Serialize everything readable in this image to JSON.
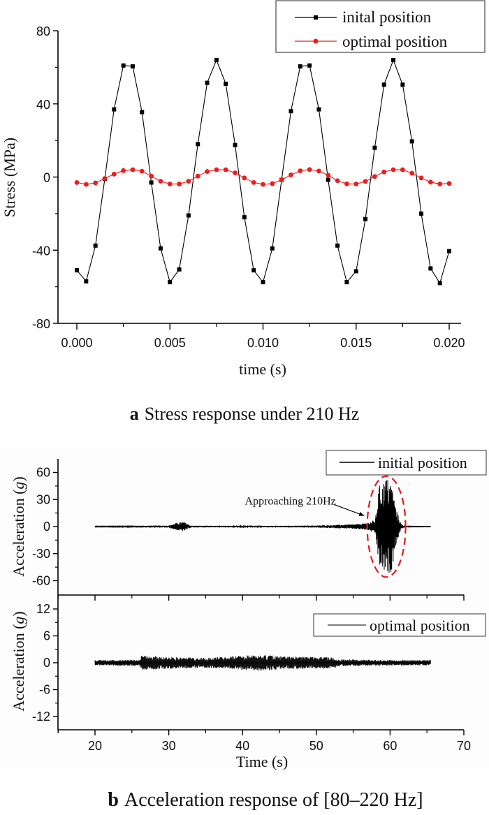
{
  "chart_data": [
    {
      "id": "a",
      "type": "line",
      "caption_letter": "a",
      "caption_text": "Stress response under 210 Hz",
      "xlabel": "time (s)",
      "ylabel": "Stress (MPa)",
      "xlim": [
        -0.0011,
        0.0211
      ],
      "ylim": [
        -80,
        80
      ],
      "xticks": [
        0.0,
        0.005,
        0.01,
        0.015,
        0.02
      ],
      "xtick_labels": [
        "0.000",
        "0.005",
        "0.010",
        "0.015",
        "0.020"
      ],
      "yticks": [
        -80,
        -40,
        0,
        40,
        80
      ],
      "ytick_labels": [
        "-80",
        "-40",
        "0",
        "40",
        "80"
      ],
      "grid": false,
      "legend_position": "top-right",
      "x_start": 0.0,
      "x_step": 0.0005,
      "series": [
        {
          "name": "inital position",
          "color": "#000000",
          "marker": "square",
          "values": [
            -51,
            -57,
            -37.5,
            -1,
            37,
            61,
            60.5,
            35.5,
            -3,
            -39,
            -57.5,
            -50.5,
            -21,
            18,
            51.5,
            64,
            51,
            17.5,
            -22,
            -51,
            -57.5,
            -39,
            -1.5,
            36,
            60.5,
            61,
            37,
            -1.5,
            -37.5,
            -57.5,
            -51.5,
            -23,
            16,
            50.5,
            64,
            50.5,
            19.5,
            -20,
            -50,
            -58,
            -40.5
          ]
        },
        {
          "name": "optimal position",
          "color": "#ee1c1c",
          "marker": "circle",
          "values": [
            -3,
            -4,
            -3.2,
            -0.8,
            1.6,
            3.5,
            4,
            3.2,
            0.5,
            -2.3,
            -3.8,
            -3.8,
            -2.3,
            0.5,
            3,
            4,
            4,
            2.3,
            -0.5,
            -3,
            -4,
            -3.6,
            -1.5,
            1.2,
            3.4,
            4.1,
            3.3,
            1,
            -2,
            -3.7,
            -3.8,
            -2.4,
            0.3,
            2.8,
            4,
            4,
            2.1,
            -0.5,
            -2.8,
            -3.8,
            -3.5
          ]
        }
      ]
    },
    {
      "id": "b",
      "type": "line",
      "caption_letter": "b",
      "caption_text": "Acceleration response of [80–220 Hz]",
      "xlabel": "Time (s)",
      "xlim": [
        15,
        70
      ],
      "xticks": [
        20,
        30,
        40,
        50,
        60,
        70
      ],
      "xtick_labels": [
        "20",
        "30",
        "40",
        "50",
        "60",
        "70"
      ],
      "grid": false,
      "panels": [
        {
          "name": "initial position",
          "ylabel_prefix": "Acceleration (",
          "ylabel_unit": "g",
          "ylabel_suffix": ")",
          "ylim": [
            -70,
            70
          ],
          "yticks": [
            -60,
            -30,
            0,
            30,
            60
          ],
          "ytick_labels": [
            "-60",
            "-30",
            "0",
            "30",
            "60"
          ],
          "legend_position": "top-right",
          "signal_range": [
            20,
            65.5
          ],
          "envelope": [
            {
              "t": 20,
              "amp": 0.3
            },
            {
              "t": 25,
              "amp": 0.4
            },
            {
              "t": 25.2,
              "amp": 1
            },
            {
              "t": 30,
              "amp": 1.2
            },
            {
              "t": 31,
              "amp": 4
            },
            {
              "t": 32,
              "amp": 5.5
            },
            {
              "t": 33,
              "amp": 1
            },
            {
              "t": 38,
              "amp": 0.8
            },
            {
              "t": 40,
              "amp": 0.6
            },
            {
              "t": 45,
              "amp": 0.8
            },
            {
              "t": 50,
              "amp": 1.2
            },
            {
              "t": 55,
              "amp": 2.5
            },
            {
              "t": 57,
              "amp": 4
            },
            {
              "t": 58,
              "amp": 8
            },
            {
              "t": 58.5,
              "amp": 45
            },
            {
              "t": 59.5,
              "amp": 55
            },
            {
              "t": 60.2,
              "amp": 50
            },
            {
              "t": 60.8,
              "amp": 20
            },
            {
              "t": 61.5,
              "amp": 3
            },
            {
              "t": 62,
              "amp": 0.3
            },
            {
              "t": 65.5,
              "amp": 0.2
            }
          ],
          "annotation": {
            "text": "Approaching 210Hz",
            "x": 46,
            "y": 29,
            "arrow_to": [
              56.5,
              12
            ]
          },
          "highlight_ellipse": {
            "cx": 59.5,
            "cy": 0,
            "rx": 2.6,
            "ry": 56,
            "color": "#e41a1c"
          }
        },
        {
          "name": "optimal position",
          "ylabel_prefix": "Acceleration (",
          "ylabel_unit": "g",
          "ylabel_suffix": ")",
          "ylim": [
            -15,
            15
          ],
          "yticks": [
            -12,
            -6,
            0,
            6,
            12
          ],
          "ytick_labels": [
            "-12",
            "-6",
            "0",
            "6",
            "12"
          ],
          "legend_position": "top-right",
          "signal_range": [
            20,
            65.5
          ],
          "envelope": [
            {
              "t": 20,
              "amp": 0.6
            },
            {
              "t": 26,
              "amp": 0.7
            },
            {
              "t": 26.3,
              "amp": 1.6
            },
            {
              "t": 29,
              "amp": 1.4
            },
            {
              "t": 35,
              "amp": 1.1
            },
            {
              "t": 39,
              "amp": 1.5
            },
            {
              "t": 42,
              "amp": 1.8
            },
            {
              "t": 46,
              "amp": 1.4
            },
            {
              "t": 50,
              "amp": 1.4
            },
            {
              "t": 52.5,
              "amp": 1.2
            },
            {
              "t": 53,
              "amp": 0.8
            },
            {
              "t": 60,
              "amp": 0.6
            },
            {
              "t": 65.5,
              "amp": 0.6
            }
          ]
        }
      ]
    }
  ]
}
